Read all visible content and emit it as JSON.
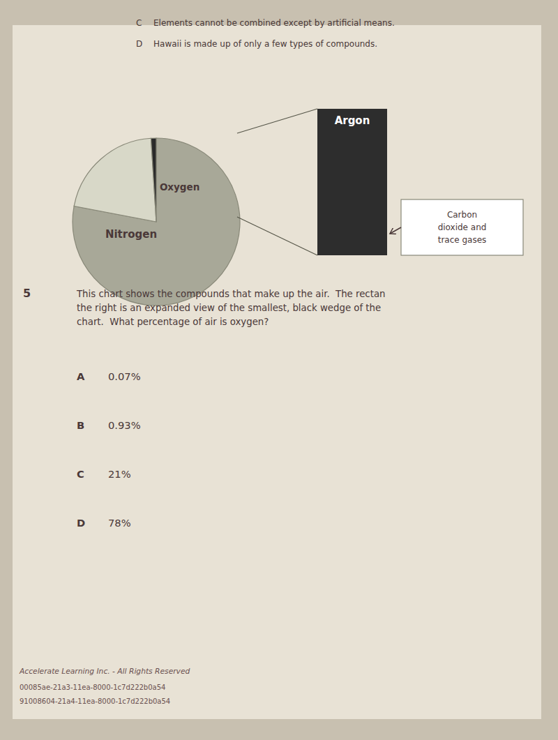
{
  "chart_data": {
    "type": "pie",
    "categories": [
      "Nitrogen",
      "Oxygen",
      null
    ],
    "values": [
      78,
      21,
      1
    ],
    "colors": [
      "#a8a898",
      "#d8d8c8",
      "#2a2a2a"
    ],
    "annotations": [
      "C",
      "Elements cannot be combined except by artificial means.",
      "D",
      "Hawaii is made up of only a few types of compounds.",
      "Argon",
      "Carbon\ndioxide and\ntrace gases",
      "5",
      "This chart shows the compounds that make up the air.  The rectan\nthe right is an expanded view of the smallest, black wedge of the \nchart.  What percentage of air is oxygen?",
      "A",
      "0.07%",
      "B",
      "0.93%",
      "C",
      "21%",
      "D",
      "78%",
      "Accelerate Learning Inc. - All Rights Reserved",
      "00085ae-21a3-11ea-8000-1c7d222b0a54",
      "91008604-21a4-11ea-8000-1c7d222b0a54"
    ]
  }
}
